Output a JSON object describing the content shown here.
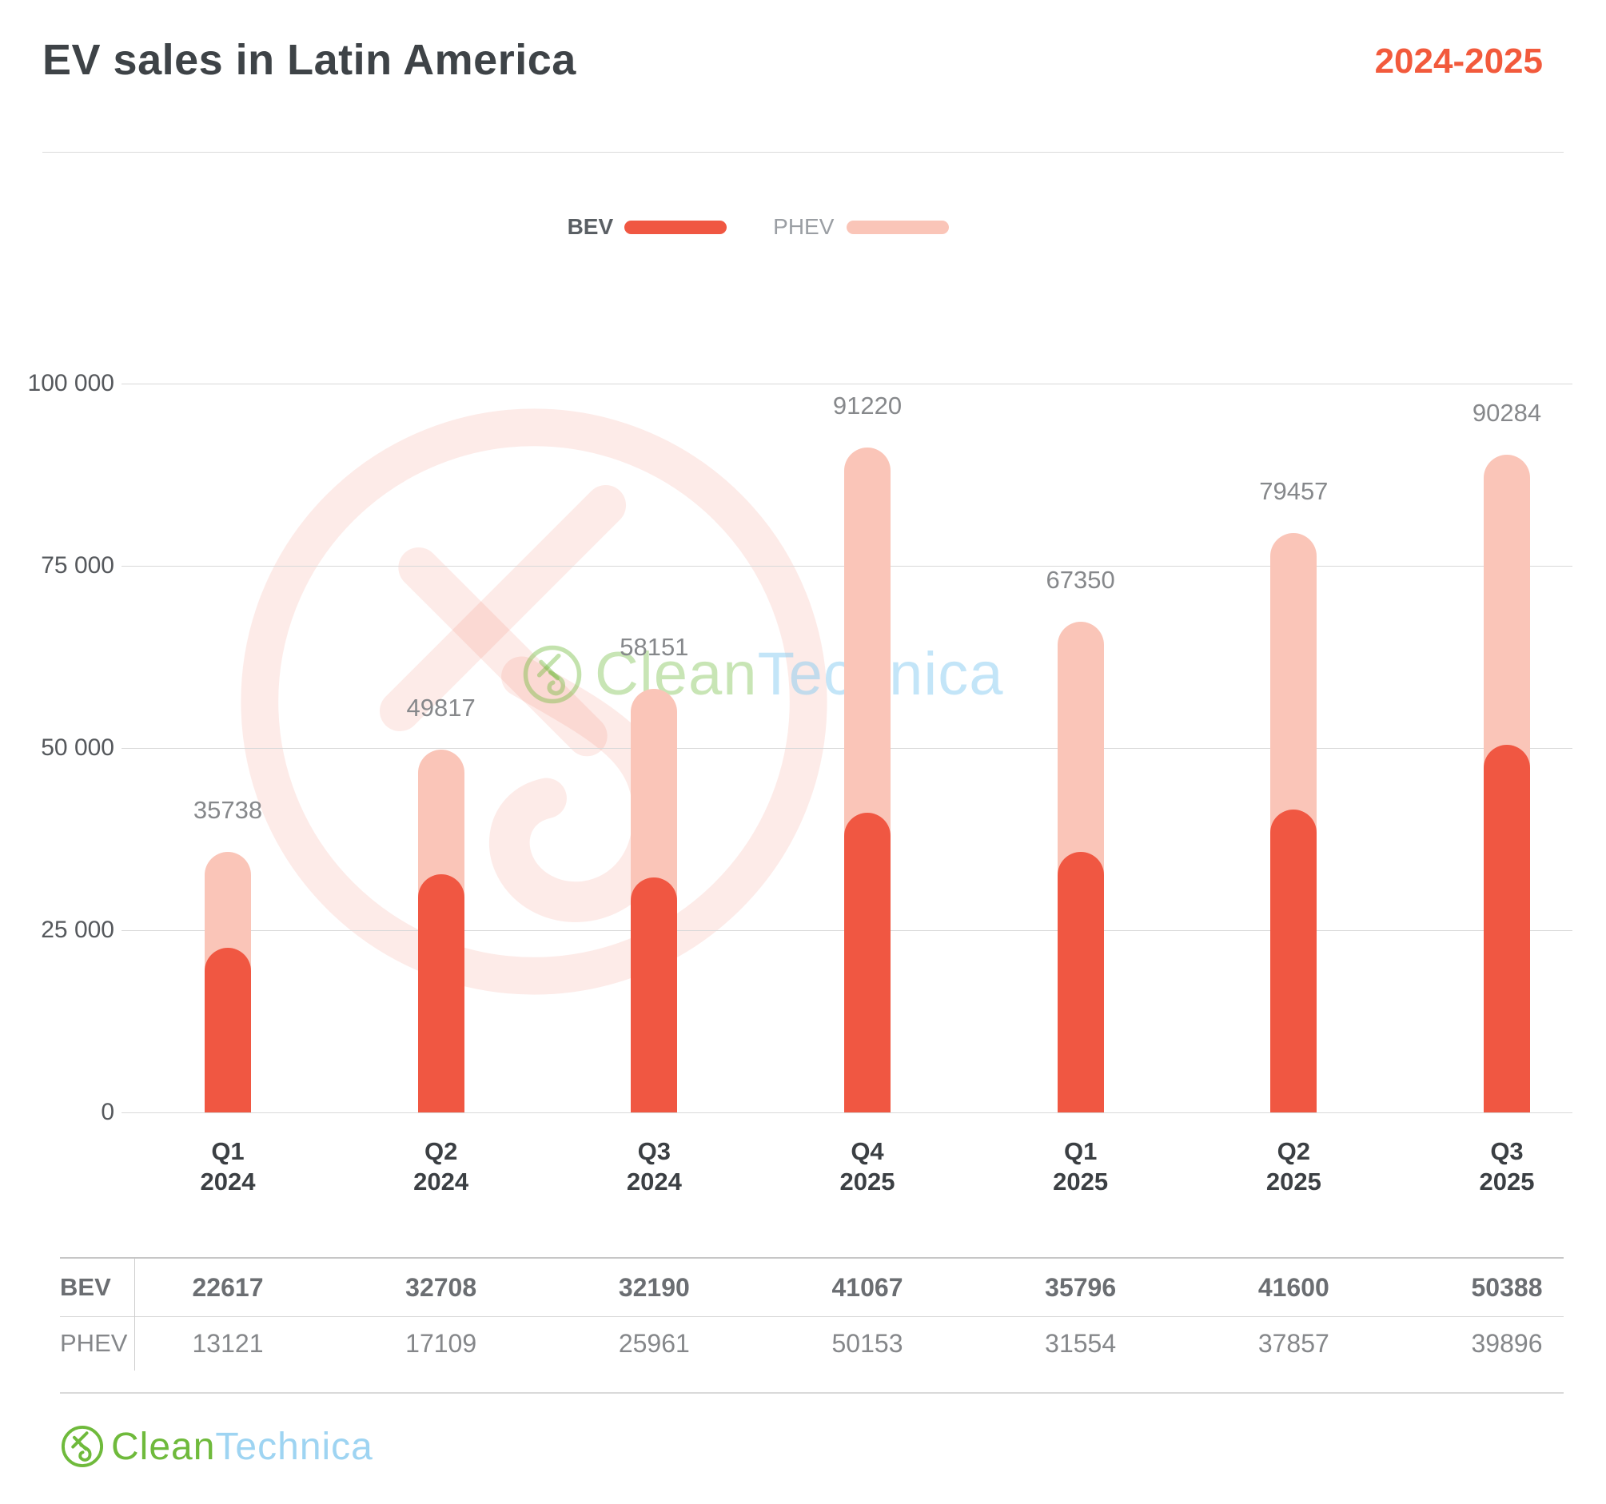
{
  "header": {
    "title": "EV sales in Latin America",
    "period": "2024-2025"
  },
  "legend": {
    "items": [
      {
        "label": "BEV",
        "color": "#f05742"
      },
      {
        "label": "PHEV",
        "color": "#fac5b8"
      }
    ]
  },
  "chart_data": {
    "type": "bar",
    "stacked": true,
    "title": "EV sales in Latin America",
    "subtitle": "2024-2025",
    "categories": [
      "Q1 2024",
      "Q2 2024",
      "Q3 2024",
      "Q4 2025",
      "Q1 2025",
      "Q2 2025",
      "Q3 2025"
    ],
    "category_lines": [
      [
        "Q1",
        "2024"
      ],
      [
        "Q2",
        "2024"
      ],
      [
        "Q3",
        "2024"
      ],
      [
        "Q4",
        "2025"
      ],
      [
        "Q1",
        "2025"
      ],
      [
        "Q2",
        "2025"
      ],
      [
        "Q3",
        "2025"
      ]
    ],
    "series": [
      {
        "name": "BEV",
        "color": "#f05742",
        "values": [
          22617,
          32708,
          32190,
          41067,
          35796,
          41600,
          50388
        ]
      },
      {
        "name": "PHEV",
        "color": "#fac5b8",
        "values": [
          13121,
          17109,
          25961,
          50153,
          31554,
          37857,
          39896
        ]
      }
    ],
    "totals": [
      35738,
      49817,
      58151,
      91220,
      67350,
      79457,
      90284
    ],
    "y_ticks": [
      {
        "value": 0,
        "label": "0"
      },
      {
        "value": 25000,
        "label": "25 000"
      },
      {
        "value": 50000,
        "label": "50 000"
      },
      {
        "value": 75000,
        "label": "75 000"
      },
      {
        "value": 100000,
        "label": "100 000"
      }
    ],
    "ylim": [
      0,
      100000
    ],
    "grid": true,
    "legend_position": "top"
  },
  "table": {
    "rows": [
      {
        "label": "BEV",
        "values": [
          "22617",
          "32708",
          "32190",
          "41067",
          "35796",
          "41600",
          "50388"
        ]
      },
      {
        "label": "PHEV",
        "values": [
          "13121",
          "17109",
          "25961",
          "50153",
          "31554",
          "37857",
          "39896"
        ]
      }
    ]
  },
  "watermark": {
    "brand_green": "Clean",
    "brand_blue": "Technica"
  },
  "footer": {
    "brand_green": "Clean",
    "brand_blue": "Technica"
  },
  "colors": {
    "bev": "#f05742",
    "phev": "#fac5b8",
    "accent": "#f25a3c",
    "logo_green": "#6fba3c",
    "logo_blue": "#9ed4f2"
  }
}
